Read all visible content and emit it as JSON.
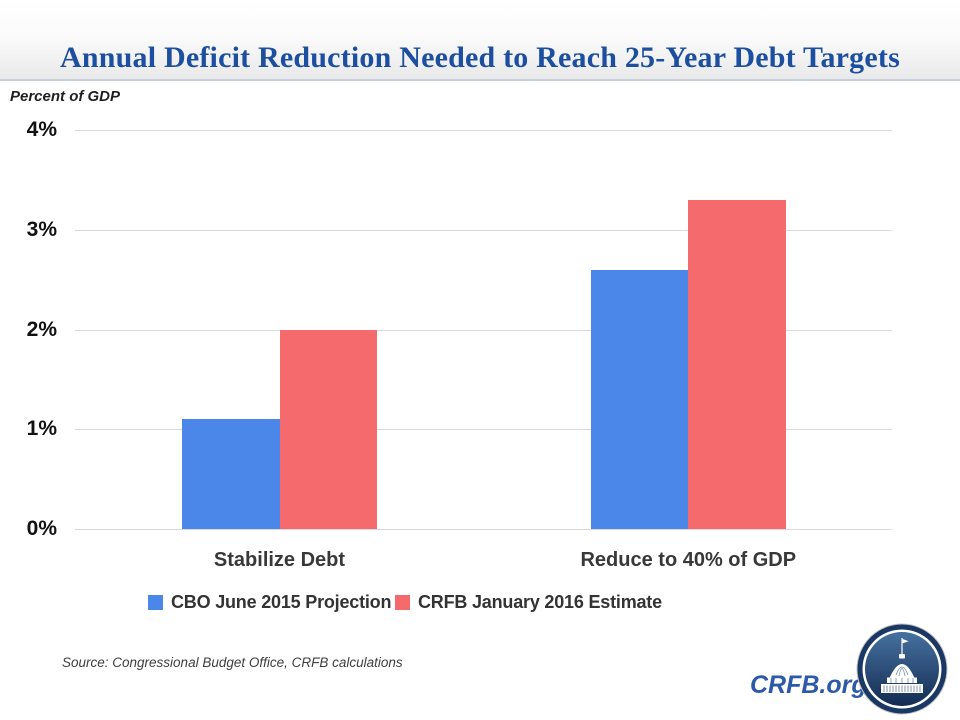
{
  "header": {
    "title": "Annual Deficit Reduction Needed to Reach 25-Year Debt Targets"
  },
  "chart": {
    "axis_title": "Percent of GDP",
    "y_ticks": [
      {
        "label": "4%",
        "value": 4
      },
      {
        "label": "3%",
        "value": 3
      },
      {
        "label": "2%",
        "value": 2
      },
      {
        "label": "1%",
        "value": 1
      },
      {
        "label": "0%",
        "value": 0
      }
    ]
  },
  "chart_data": {
    "type": "bar",
    "title": "Annual Deficit Reduction Needed to Reach 25-Year Debt Targets",
    "xlabel": "",
    "ylabel": "Percent of GDP",
    "ylim": [
      0,
      4
    ],
    "ytick_format": "percent",
    "grid": true,
    "legend_position": "bottom",
    "categories": [
      "Stabilize Debt",
      "Reduce to 40% of GDP"
    ],
    "series": [
      {
        "name": "CBO June 2015 Projection",
        "color": "#4a87e8",
        "values": [
          1.1,
          2.6
        ]
      },
      {
        "name": "CRFB January 2016 Estimate",
        "color": "#f46a6d",
        "values": [
          2.0,
          3.3
        ]
      }
    ]
  },
  "footer": {
    "source": "Source: Congressional Budget Office, CRFB calculations",
    "site": "CRFB.org",
    "logo_icon": "capitol-building-icon"
  },
  "colors": {
    "title_blue": "#1d4fa1",
    "link_blue": "#2c5aa8",
    "gridline": "#d9d9d9",
    "logo_navy": "#1a3863"
  }
}
